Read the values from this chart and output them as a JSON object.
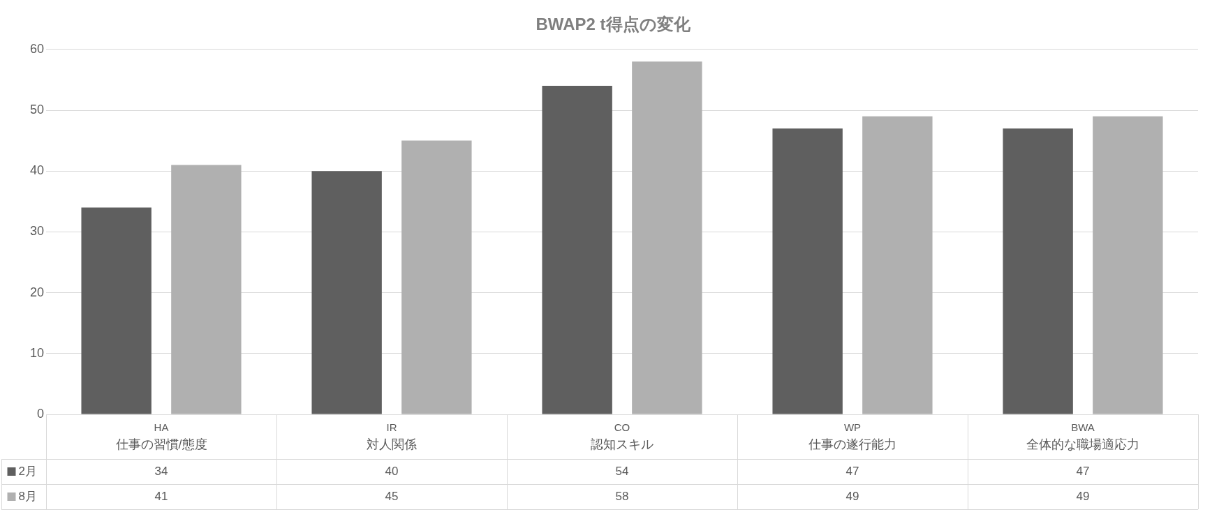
{
  "chart_data": {
    "type": "bar",
    "title": "BWAP2 t得点の変化",
    "categories": [
      "HA\n仕事の習慣/態度",
      "IR\n対人関係",
      "CO\n認知スキル",
      "WP\n仕事の遂行能力",
      "BWA\n全体的な職場適応力"
    ],
    "series": [
      {
        "name": "2月",
        "color": "#5f5f5f",
        "values": [
          34,
          40,
          54,
          47,
          47
        ]
      },
      {
        "name": "8月",
        "color": "#b0b0b0",
        "values": [
          41,
          45,
          58,
          49,
          49
        ]
      }
    ],
    "ylim": [
      0,
      60
    ],
    "yticks": [
      0,
      10,
      20,
      30,
      40,
      50,
      60
    ],
    "grid": "y",
    "legend": "bottom",
    "data_labels": true
  }
}
